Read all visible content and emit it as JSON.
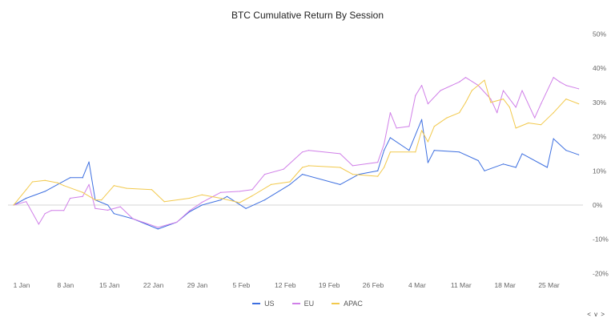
{
  "chart_data": {
    "type": "line",
    "title": "BTC Cumulative Return By Session",
    "xlabel": "",
    "ylabel": "",
    "ylim": [
      -20,
      50
    ],
    "y_ticks": [
      "-20%",
      "-10%",
      "0%",
      "10%",
      "20%",
      "30%",
      "40%",
      "50%"
    ],
    "y_tick_values": [
      -20,
      -10,
      0,
      10,
      20,
      30,
      40,
      50
    ],
    "x_ticks": [
      "1 Jan",
      "8 Jan",
      "15 Jan",
      "22 Jan",
      "29 Jan",
      "5 Feb",
      "12 Feb",
      "19 Feb",
      "26 Feb",
      "4 Mar",
      "11 Mar",
      "18 Mar",
      "25 Mar"
    ],
    "x_range": [
      "Jan 1",
      "Mar 31"
    ],
    "y_axis_position": "right",
    "grid": false,
    "zero_line": true,
    "legend_position": "bottom",
    "series": [
      {
        "name": "US",
        "color": "#3d6fe0",
        "x": [
          "Jan 1",
          "Jan 3",
          "Jan 6",
          "Jan 10",
          "Jan 12",
          "Jan 13",
          "Jan 14",
          "Jan 16",
          "Jan 17",
          "Jan 20",
          "Jan 24",
          "Jan 27",
          "Jan 29",
          "Jan 31",
          "Feb 3",
          "Feb 4",
          "Feb 7",
          "Feb 10",
          "Feb 14",
          "Feb 16",
          "Feb 22",
          "Feb 25",
          "Feb 28",
          "Feb 29",
          "Mar 1",
          "Mar 4",
          "Mar 6",
          "Mar 7",
          "Mar 8",
          "Mar 12",
          "Mar 15",
          "Mar 16",
          "Mar 19",
          "Mar 21",
          "Mar 22",
          "Mar 26",
          "Mar 27",
          "Mar 29",
          "Mar 31"
        ],
        "values": [
          0,
          2,
          4,
          8,
          8,
          12.6,
          1.5,
          0,
          -2.5,
          -4,
          -7,
          -5,
          -2,
          0,
          1.5,
          2.5,
          -1,
          1.5,
          6,
          9,
          6,
          9,
          10,
          16,
          19.7,
          16,
          25,
          12.4,
          16,
          15.5,
          13,
          10,
          12,
          11,
          15,
          11,
          19.4,
          16,
          14.7
        ]
      },
      {
        "name": "EU",
        "color": "#d07fe8",
        "x": [
          "Jan 1",
          "Jan 3",
          "Jan 5",
          "Jan 6",
          "Jan 7",
          "Jan 9",
          "Jan 10",
          "Jan 12",
          "Jan 13",
          "Jan 14",
          "Jan 16",
          "Jan 18",
          "Jan 20",
          "Jan 24",
          "Jan 27",
          "Jan 29",
          "Jan 31",
          "Feb 3",
          "Feb 6",
          "Feb 8",
          "Feb 10",
          "Feb 13",
          "Feb 16",
          "Feb 17",
          "Feb 22",
          "Feb 24",
          "Feb 28",
          "Feb 29",
          "Mar 1",
          "Mar 2",
          "Mar 4",
          "Mar 5",
          "Mar 6",
          "Mar 7",
          "Mar 9",
          "Mar 12",
          "Mar 13",
          "Mar 15",
          "Mar 17",
          "Mar 18",
          "Mar 19",
          "Mar 21",
          "Mar 22",
          "Mar 24",
          "Mar 25",
          "Mar 27",
          "Mar 28",
          "Mar 29",
          "Mar 31"
        ],
        "values": [
          0,
          1,
          -5.6,
          -2.5,
          -1.6,
          -1.6,
          2,
          2.5,
          6,
          -1,
          -1.5,
          -0.5,
          -4,
          -6.5,
          -5,
          -1.7,
          0.8,
          3.7,
          4,
          4.5,
          9,
          10.5,
          15.5,
          16,
          15,
          11.5,
          12.5,
          17.8,
          27,
          22.5,
          23,
          32,
          35,
          29.6,
          33.5,
          36,
          37.3,
          35,
          31,
          27,
          33.5,
          28.6,
          33.5,
          25.5,
          29.6,
          37.3,
          36,
          35,
          34
        ]
      },
      {
        "name": "APAC",
        "color": "#f2c94c",
        "x": [
          "Jan 1",
          "Jan 3",
          "Jan 4",
          "Jan 6",
          "Jan 8",
          "Jan 9",
          "Jan 12",
          "Jan 14",
          "Jan 15",
          "Jan 17",
          "Jan 19",
          "Jan 23",
          "Jan 25",
          "Jan 29",
          "Jan 31",
          "Feb 3",
          "Feb 6",
          "Feb 8",
          "Feb 11",
          "Feb 14",
          "Feb 16",
          "Feb 17",
          "Feb 22",
          "Feb 24",
          "Feb 28",
          "Feb 29",
          "Mar 1",
          "Mar 5",
          "Mar 6",
          "Mar 7",
          "Mar 8",
          "Mar 10",
          "Mar 12",
          "Mar 13",
          "Mar 14",
          "Mar 16",
          "Mar 17",
          "Mar 19",
          "Mar 20",
          "Mar 21",
          "Mar 23",
          "Mar 25",
          "Mar 27",
          "Mar 29",
          "Mar 31"
        ],
        "values": [
          0,
          4.5,
          6.8,
          7.2,
          6.5,
          5.7,
          3.7,
          1.5,
          1.5,
          5.7,
          4.9,
          4.5,
          1,
          2,
          3,
          2,
          0.7,
          2.7,
          6,
          6.8,
          11,
          11.5,
          11,
          9,
          8.4,
          11,
          15.5,
          15.5,
          21.8,
          18.5,
          23,
          25.5,
          27,
          30,
          33.5,
          36.5,
          30,
          31,
          28.6,
          22.5,
          24,
          23.5,
          27,
          31,
          29.6
        ]
      }
    ]
  },
  "nav_label": "< v >"
}
